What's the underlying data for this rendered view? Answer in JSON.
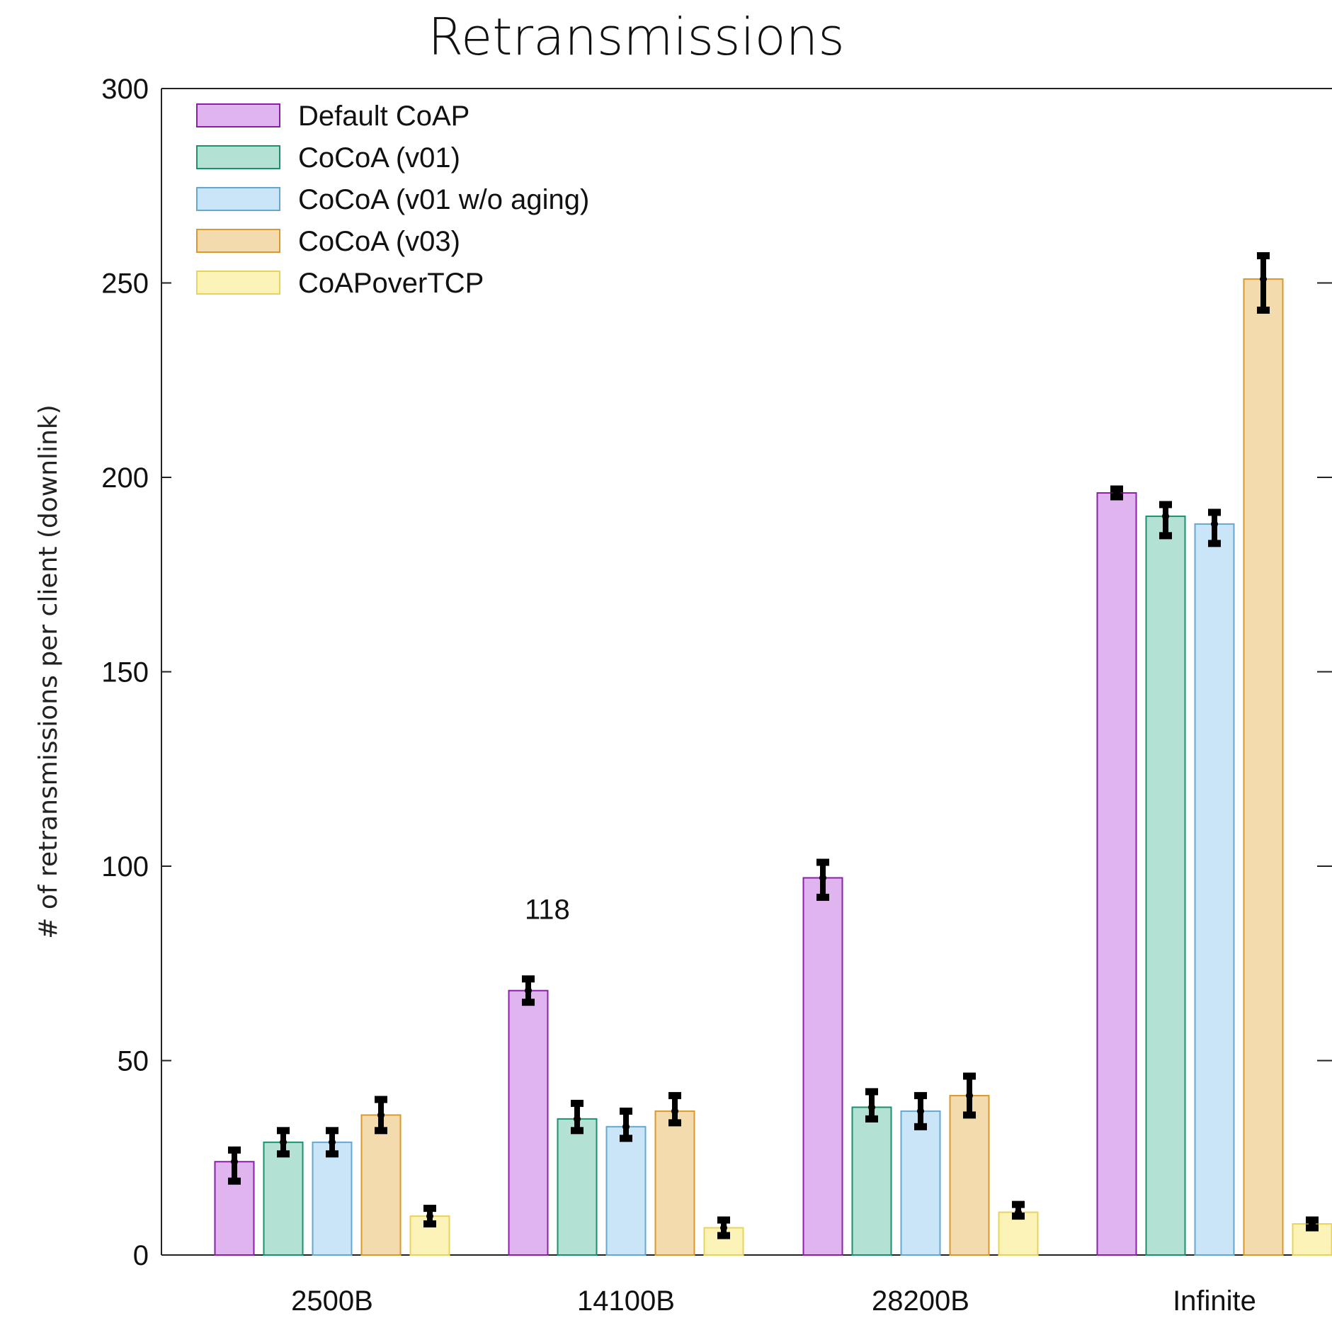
{
  "chart_data": {
    "type": "bar",
    "title": "Retransmissions",
    "ylabel": "# of retransmissions per client (downlink)",
    "xlabel": "",
    "ylim": [
      0,
      300
    ],
    "yticks": [
      0,
      50,
      100,
      150,
      200,
      250,
      300
    ],
    "categories": [
      "2500B",
      "14100B",
      "28200B",
      "Infinite"
    ],
    "series": [
      {
        "name": "Default CoAP",
        "color": "#e0b4ef",
        "stroke": "#8b1fa9",
        "values": [
          24,
          68,
          97,
          196
        ],
        "err_low": [
          19,
          65,
          92,
          195
        ],
        "err_high": [
          27,
          71,
          101,
          197
        ]
      },
      {
        "name": "CoCoA (v01)",
        "color": "#b3e2d4",
        "stroke": "#1a9070",
        "values": [
          29,
          35,
          38,
          190
        ],
        "err_low": [
          26,
          32,
          35,
          185
        ],
        "err_high": [
          32,
          39,
          42,
          193
        ]
      },
      {
        "name": "CoCoA (v01 w/o aging)",
        "color": "#c9e5f7",
        "stroke": "#64a8d0",
        "values": [
          29,
          33,
          37,
          188
        ],
        "err_low": [
          26,
          30,
          33,
          183
        ],
        "err_high": [
          32,
          37,
          41,
          191
        ]
      },
      {
        "name": "CoCoA (v03)",
        "color": "#f4dbad",
        "stroke": "#d89a2a",
        "values": [
          36,
          37,
          41,
          251
        ],
        "err_low": [
          32,
          34,
          36,
          243
        ],
        "err_high": [
          40,
          41,
          46,
          257
        ]
      },
      {
        "name": "CoAPoverTCP",
        "color": "#fbf3b7",
        "stroke": "#e8d45a",
        "values": [
          10,
          7,
          11,
          8
        ],
        "err_low": [
          8,
          5,
          10,
          7
        ],
        "err_high": [
          12,
          9,
          13,
          9
        ]
      }
    ],
    "annotations": [
      {
        "text": "118",
        "x": "14100B",
        "y": 89
      }
    ],
    "legend_position": "top-left",
    "grid": false
  }
}
